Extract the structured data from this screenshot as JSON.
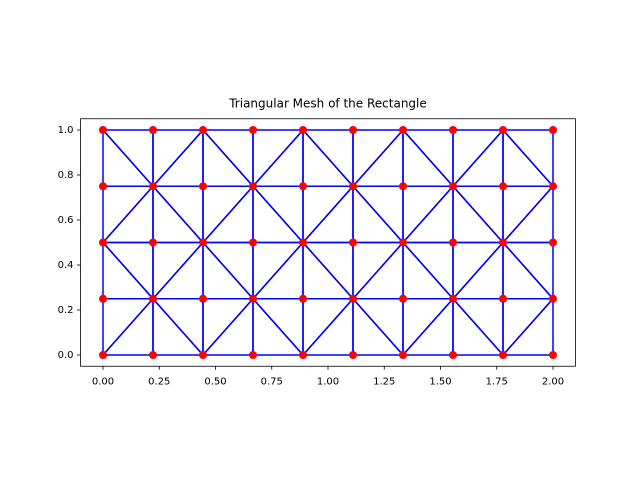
{
  "chart_data": {
    "type": "triangulation",
    "title": "Triangular Mesh of the Rectangle",
    "x": [
      0,
      0.2222,
      0.4444,
      0.6667,
      0.8889,
      1.1111,
      1.3333,
      1.5556,
      1.7778,
      2,
      0,
      0.2222,
      0.4444,
      0.6667,
      0.8889,
      1.1111,
      1.3333,
      1.5556,
      1.7778,
      2,
      0,
      0.2222,
      0.4444,
      0.6667,
      0.8889,
      1.1111,
      1.3333,
      1.5556,
      1.7778,
      2,
      0,
      0.2222,
      0.4444,
      0.6667,
      0.8889,
      1.1111,
      1.3333,
      1.5556,
      1.7778,
      2,
      0,
      0.2222,
      0.4444,
      0.6667,
      0.8889,
      1.1111,
      1.3333,
      1.5556,
      1.7778,
      2
    ],
    "y": [
      0,
      0,
      0,
      0,
      0,
      0,
      0,
      0,
      0,
      0,
      0.25,
      0.25,
      0.25,
      0.25,
      0.25,
      0.25,
      0.25,
      0.25,
      0.25,
      0.25,
      0.5,
      0.5,
      0.5,
      0.5,
      0.5,
      0.5,
      0.5,
      0.5,
      0.5,
      0.5,
      0.75,
      0.75,
      0.75,
      0.75,
      0.75,
      0.75,
      0.75,
      0.75,
      0.75,
      0.75,
      1,
      1,
      1,
      1,
      1,
      1,
      1,
      1,
      1,
      1
    ],
    "triangles": [
      [
        0,
        1,
        11
      ],
      [
        0,
        11,
        10
      ],
      [
        1,
        2,
        11
      ],
      [
        2,
        12,
        11
      ],
      [
        2,
        3,
        13
      ],
      [
        2,
        13,
        12
      ],
      [
        3,
        4,
        13
      ],
      [
        4,
        14,
        13
      ],
      [
        4,
        5,
        15
      ],
      [
        4,
        15,
        14
      ],
      [
        5,
        6,
        15
      ],
      [
        6,
        16,
        15
      ],
      [
        6,
        7,
        17
      ],
      [
        6,
        17,
        16
      ],
      [
        7,
        8,
        17
      ],
      [
        8,
        18,
        17
      ],
      [
        8,
        9,
        19
      ],
      [
        8,
        19,
        18
      ],
      [
        10,
        11,
        20
      ],
      [
        11,
        21,
        20
      ],
      [
        11,
        12,
        22
      ],
      [
        11,
        22,
        21
      ],
      [
        12,
        13,
        22
      ],
      [
        13,
        23,
        22
      ],
      [
        13,
        14,
        24
      ],
      [
        13,
        24,
        23
      ],
      [
        14,
        15,
        24
      ],
      [
        15,
        25,
        24
      ],
      [
        15,
        16,
        26
      ],
      [
        15,
        26,
        25
      ],
      [
        16,
        17,
        26
      ],
      [
        17,
        27,
        26
      ],
      [
        17,
        18,
        28
      ],
      [
        17,
        28,
        27
      ],
      [
        18,
        19,
        28
      ],
      [
        19,
        29,
        28
      ],
      [
        20,
        21,
        31
      ],
      [
        20,
        31,
        30
      ],
      [
        21,
        22,
        31
      ],
      [
        22,
        32,
        31
      ],
      [
        22,
        23,
        33
      ],
      [
        22,
        33,
        32
      ],
      [
        23,
        24,
        33
      ],
      [
        24,
        34,
        33
      ],
      [
        24,
        25,
        35
      ],
      [
        24,
        35,
        34
      ],
      [
        25,
        26,
        35
      ],
      [
        26,
        36,
        35
      ],
      [
        26,
        27,
        37
      ],
      [
        26,
        37,
        36
      ],
      [
        27,
        28,
        37
      ],
      [
        28,
        38,
        37
      ],
      [
        28,
        29,
        39
      ],
      [
        28,
        39,
        38
      ],
      [
        30,
        31,
        40
      ],
      [
        31,
        41,
        40
      ],
      [
        31,
        32,
        42
      ],
      [
        31,
        42,
        41
      ],
      [
        32,
        33,
        42
      ],
      [
        33,
        43,
        42
      ],
      [
        33,
        34,
        44
      ],
      [
        33,
        44,
        43
      ],
      [
        34,
        35,
        44
      ],
      [
        35,
        45,
        44
      ],
      [
        35,
        36,
        46
      ],
      [
        35,
        46,
        45
      ],
      [
        36,
        37,
        46
      ],
      [
        37,
        47,
        46
      ],
      [
        37,
        38,
        48
      ],
      [
        37,
        48,
        47
      ],
      [
        38,
        39,
        48
      ],
      [
        39,
        49,
        48
      ]
    ],
    "edge_color": "#0000ff",
    "point_color": "#ff0000",
    "xlim": [
      -0.1,
      2.1
    ],
    "ylim": [
      -0.05,
      1.05
    ],
    "xticks": [
      {
        "value": 0,
        "label": "0.00"
      },
      {
        "value": 0.25,
        "label": "0.25"
      },
      {
        "value": 0.5,
        "label": "0.50"
      },
      {
        "value": 0.75,
        "label": "0.75"
      },
      {
        "value": 1,
        "label": "1.00"
      },
      {
        "value": 1.25,
        "label": "1.25"
      },
      {
        "value": 1.5,
        "label": "1.50"
      },
      {
        "value": 1.75,
        "label": "1.75"
      },
      {
        "value": 2,
        "label": "2.00"
      }
    ],
    "yticks": [
      {
        "value": 0,
        "label": "0.0"
      },
      {
        "value": 0.2,
        "label": "0.2"
      },
      {
        "value": 0.4,
        "label": "0.4"
      },
      {
        "value": 0.6,
        "label": "0.6"
      },
      {
        "value": 0.8,
        "label": "0.8"
      },
      {
        "value": 1,
        "label": "1.0"
      }
    ]
  }
}
